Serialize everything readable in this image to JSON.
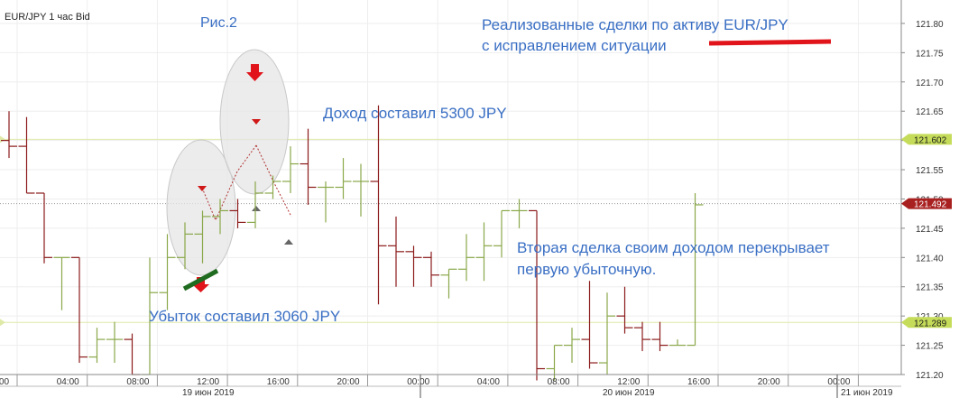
{
  "instrument_label": "EUR/JPY  1 час Bid",
  "figure_label": "Рис.2",
  "headline_lines": [
    "Реализованные сделки по активу EUR/JPY",
    "с исправлением ситуации"
  ],
  "profit_note": "Доход составил 5300 JPY",
  "loss_note": "Убыток составил 3060 JPY",
  "summary_lines": [
    "Вторая сделка своим доходом перекрывает",
    "первую убыточную."
  ],
  "colors": {
    "up": "#8aa84a",
    "down": "#8b1a1a",
    "annotation": "#3a6fc4",
    "arrow": "#e0141a",
    "marker": "#1f6b1f"
  },
  "chart_data": {
    "type": "ohlc",
    "ylim": [
      121.2,
      121.84
    ],
    "y_ticks": [
      121.2,
      121.25,
      121.3,
      121.35,
      121.4,
      121.45,
      121.5,
      121.55,
      121.6,
      121.65,
      121.7,
      121.75,
      121.8
    ],
    "y_tick_labels": [
      "121.20",
      "121.25",
      "121.30",
      "121.35",
      "121.40",
      "121.45",
      "121.50",
      "121.55",
      "121.60",
      "121.65",
      "121.70",
      "121.75",
      "121.80"
    ],
    "x_tick_labels": [
      "00:00",
      "04:00",
      "08:00",
      "12:00",
      "16:00",
      "20:00",
      "00:00",
      "04:00",
      "08:00",
      "12:00",
      "16:00",
      "20:00",
      "00:00"
    ],
    "dates": [
      "19 июн 2019",
      "20 июн 2019",
      "21 июн 2019"
    ],
    "price_levels": [
      {
        "label": "121.602",
        "value": 121.602,
        "kind": "level-upper"
      },
      {
        "label": "121.492",
        "value": 121.492,
        "kind": "current"
      },
      {
        "label": "121.289",
        "value": 121.289,
        "kind": "level-lower"
      }
    ],
    "candles": [
      {
        "o": 121.6,
        "h": 121.65,
        "l": 121.57,
        "c": 121.59
      },
      {
        "o": 121.59,
        "h": 121.64,
        "l": 121.51,
        "c": 121.51
      },
      {
        "o": 121.51,
        "h": 121.51,
        "l": 121.39,
        "c": 121.4
      },
      {
        "o": 121.4,
        "h": 121.4,
        "l": 121.31,
        "c": 121.4
      },
      {
        "o": 121.4,
        "h": 121.4,
        "l": 121.22,
        "c": 121.23
      },
      {
        "o": 121.23,
        "h": 121.28,
        "l": 121.22,
        "c": 121.26
      },
      {
        "o": 121.26,
        "h": 121.29,
        "l": 121.22,
        "c": 121.26
      },
      {
        "o": 121.26,
        "h": 121.27,
        "l": 121.2,
        "c": 121.2
      },
      {
        "o": 121.2,
        "h": 121.4,
        "l": 121.2,
        "c": 121.34
      },
      {
        "o": 121.34,
        "h": 121.44,
        "l": 121.31,
        "c": 121.4
      },
      {
        "o": 121.4,
        "h": 121.46,
        "l": 121.38,
        "c": 121.44
      },
      {
        "o": 121.44,
        "h": 121.48,
        "l": 121.39,
        "c": 121.47
      },
      {
        "o": 121.47,
        "h": 121.5,
        "l": 121.44,
        "c": 121.48
      },
      {
        "o": 121.48,
        "h": 121.5,
        "l": 121.45,
        "c": 121.46
      },
      {
        "o": 121.46,
        "h": 121.53,
        "l": 121.45,
        "c": 121.51
      },
      {
        "o": 121.51,
        "h": 121.54,
        "l": 121.5,
        "c": 121.53
      },
      {
        "o": 121.53,
        "h": 121.59,
        "l": 121.51,
        "c": 121.56
      },
      {
        "o": 121.56,
        "h": 121.62,
        "l": 121.49,
        "c": 121.52
      },
      {
        "o": 121.52,
        "h": 121.53,
        "l": 121.46,
        "c": 121.52
      },
      {
        "o": 121.52,
        "h": 121.57,
        "l": 121.5,
        "c": 121.53
      },
      {
        "o": 121.53,
        "h": 121.56,
        "l": 121.47,
        "c": 121.53
      },
      {
        "o": 121.53,
        "h": 121.66,
        "l": 121.32,
        "c": 121.42
      },
      {
        "o": 121.42,
        "h": 121.47,
        "l": 121.35,
        "c": 121.41
      },
      {
        "o": 121.41,
        "h": 121.42,
        "l": 121.35,
        "c": 121.4
      },
      {
        "o": 121.4,
        "h": 121.41,
        "l": 121.35,
        "c": 121.37
      },
      {
        "o": 121.37,
        "h": 121.38,
        "l": 121.33,
        "c": 121.38
      },
      {
        "o": 121.38,
        "h": 121.44,
        "l": 121.36,
        "c": 121.4
      },
      {
        "o": 121.4,
        "h": 121.46,
        "l": 121.36,
        "c": 121.42
      },
      {
        "o": 121.42,
        "h": 121.48,
        "l": 121.4,
        "c": 121.48
      },
      {
        "o": 121.48,
        "h": 121.5,
        "l": 121.45,
        "c": 121.48
      },
      {
        "o": 121.48,
        "h": 121.48,
        "l": 121.19,
        "c": 121.21
      },
      {
        "o": 121.21,
        "h": 121.25,
        "l": 121.19,
        "c": 121.25
      },
      {
        "o": 121.25,
        "h": 121.28,
        "l": 121.22,
        "c": 121.26
      },
      {
        "o": 121.26,
        "h": 121.36,
        "l": 121.21,
        "c": 121.22
      },
      {
        "o": 121.22,
        "h": 121.34,
        "l": 121.2,
        "c": 121.3
      },
      {
        "o": 121.3,
        "h": 121.35,
        "l": 121.27,
        "c": 121.28
      },
      {
        "o": 121.28,
        "h": 121.29,
        "l": 121.24,
        "c": 121.26
      },
      {
        "o": 121.26,
        "h": 121.29,
        "l": 121.24,
        "c": 121.25
      },
      {
        "o": 121.25,
        "h": 121.26,
        "l": 121.25,
        "c": 121.25
      },
      {
        "o": 121.25,
        "h": 121.51,
        "l": 121.25,
        "c": 121.49
      }
    ]
  }
}
